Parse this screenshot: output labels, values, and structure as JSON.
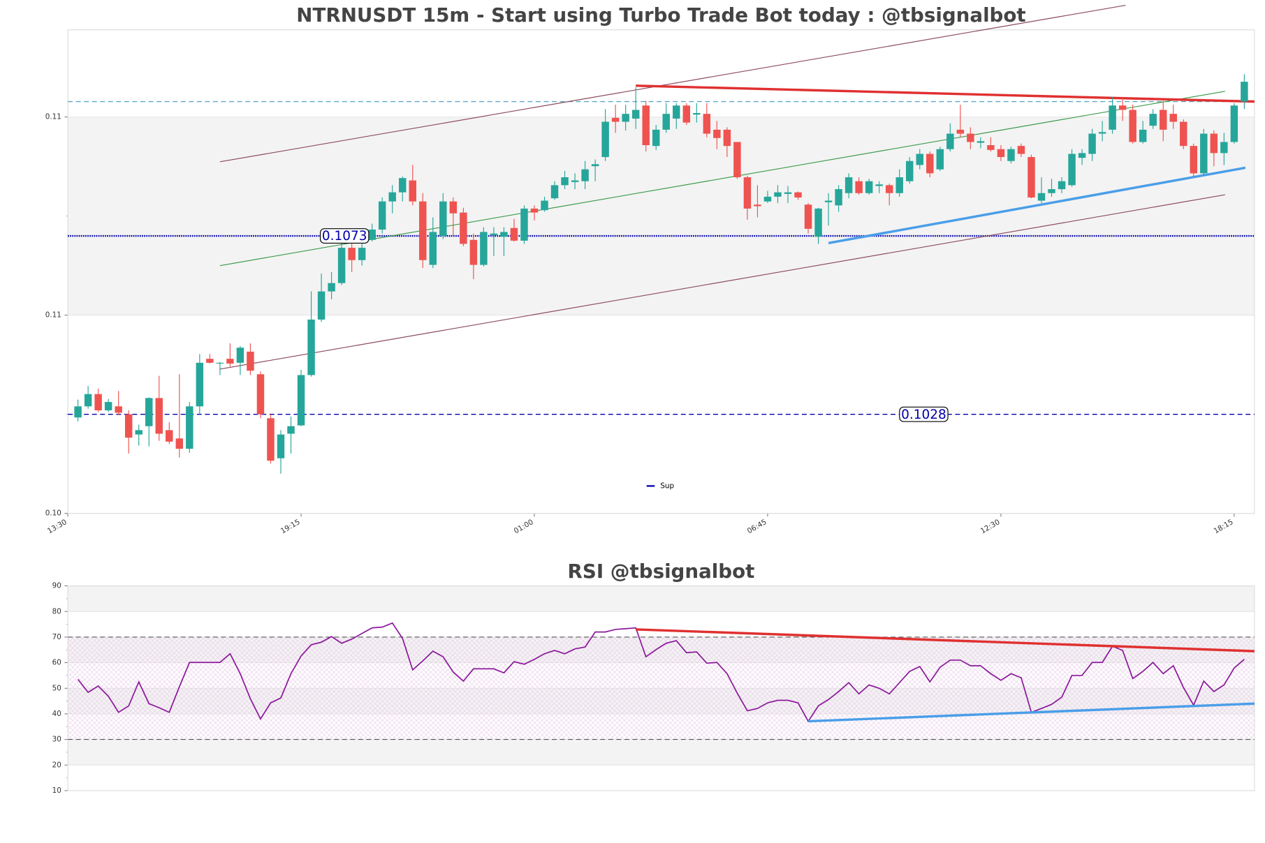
{
  "chart_data": [
    {
      "type": "candlestick",
      "title": "NTRNUSDT 15m - Start using Turbo Trade Bot today : @tbsignalbot",
      "x": [
        1,
        2,
        3,
        4,
        5,
        6,
        7,
        8,
        9,
        10,
        11,
        12,
        13,
        14,
        15,
        16,
        17,
        18,
        19,
        20,
        21,
        22,
        23,
        24,
        25,
        26,
        27,
        28,
        29,
        30,
        31,
        32,
        33,
        34,
        35,
        36,
        37,
        38,
        39,
        40,
        41,
        42,
        43,
        44,
        45,
        46,
        47,
        48,
        49,
        50,
        51,
        52,
        53,
        54,
        55,
        56,
        57,
        58,
        59,
        60,
        61,
        62,
        63,
        64,
        65,
        66,
        67,
        68,
        69,
        70,
        71,
        72,
        73,
        74,
        75,
        76,
        77,
        78,
        79,
        80,
        81,
        82,
        83,
        84,
        85,
        86,
        87,
        88,
        89,
        90,
        91,
        92,
        93,
        94,
        95,
        96,
        97,
        98,
        99,
        100,
        101,
        102,
        103,
        104,
        105,
        106,
        107,
        108,
        109,
        110,
        111,
        112,
        113,
        114,
        115,
        116
      ],
      "open": [
        0.10272,
        0.103,
        0.10331,
        0.1029,
        0.103,
        0.1028,
        0.10229,
        0.1025,
        0.10321,
        0.1024,
        0.10219,
        0.10193,
        0.103,
        0.1042,
        0.10408,
        0.1042,
        0.1041,
        0.10438,
        0.10381,
        0.1027,
        0.10169,
        0.10231,
        0.10252,
        0.10379,
        0.10519,
        0.1059,
        0.10611,
        0.107,
        0.10669,
        0.1072,
        0.10746,
        0.10817,
        0.1084,
        0.1087,
        0.10817,
        0.10657,
        0.1073,
        0.10817,
        0.10789,
        0.1072,
        0.10657,
        0.10732,
        0.10728,
        0.1075,
        0.10718,
        0.10799,
        0.10795,
        0.10825,
        0.10858,
        0.10866,
        0.10868,
        0.10906,
        0.10929,
        0.11028,
        0.11018,
        0.11026,
        0.11059,
        0.10957,
        0.10998,
        0.11026,
        0.11059,
        0.11036,
        0.11038,
        0.10998,
        0.10998,
        0.10967,
        0.10878,
        0.10809,
        0.10817,
        0.10829,
        0.10836,
        0.1084,
        0.10809,
        0.10728,
        0.10815,
        0.10807,
        0.10838,
        0.10868,
        0.10838,
        0.10856,
        0.10858,
        0.10838,
        0.10868,
        0.10909,
        0.10937,
        0.10898,
        0.10949,
        0.10998,
        0.10988,
        0.10965,
        0.10959,
        0.10949,
        0.10919,
        0.10957,
        0.10929,
        0.10819,
        0.10838,
        0.10848,
        0.10858,
        0.10927,
        0.10937,
        0.10988,
        0.10998,
        0.11059,
        0.11048,
        0.10967,
        0.11008,
        0.11048,
        0.11038,
        0.11018,
        0.10957,
        0.10888,
        0.10988,
        0.10939,
        0.10967,
        0.11069
      ],
      "close": [
        0.103,
        0.10331,
        0.1029,
        0.10311,
        0.10284,
        0.10221,
        0.1024,
        0.10321,
        0.10231,
        0.10211,
        0.10193,
        0.103,
        0.1041,
        0.1041,
        0.1041,
        0.10408,
        0.10448,
        0.1039,
        0.1028,
        0.10163,
        0.10229,
        0.1025,
        0.10379,
        0.10519,
        0.1059,
        0.10611,
        0.107,
        0.10669,
        0.107,
        0.10746,
        0.10817,
        0.1084,
        0.10876,
        0.10817,
        0.10669,
        0.1074,
        0.10817,
        0.10787,
        0.1071,
        0.10657,
        0.1074,
        0.10736,
        0.1074,
        0.10718,
        0.10799,
        0.10789,
        0.10819,
        0.10858,
        0.10878,
        0.1087,
        0.10898,
        0.10911,
        0.11018,
        0.11018,
        0.11038,
        0.11048,
        0.10959,
        0.10998,
        0.11038,
        0.11059,
        0.11016,
        0.1104,
        0.10988,
        0.10977,
        0.10957,
        0.10878,
        0.10799,
        0.10805,
        0.10829,
        0.1084,
        0.1084,
        0.10827,
        0.10748,
        0.10799,
        0.10819,
        0.10848,
        0.10878,
        0.10838,
        0.10868,
        0.1086,
        0.10838,
        0.10878,
        0.10919,
        0.10937,
        0.10888,
        0.10949,
        0.10988,
        0.10988,
        0.10967,
        0.10969,
        0.10947,
        0.10929,
        0.10949,
        0.10937,
        0.10827,
        0.10838,
        0.10848,
        0.10868,
        0.10937,
        0.10939,
        0.10988,
        0.10992,
        0.11059,
        0.11048,
        0.10967,
        0.10998,
        0.11038,
        0.10998,
        0.11018,
        0.10957,
        0.10888,
        0.10988,
        0.10939,
        0.10967,
        0.11059,
        0.11119
      ],
      "high": [
        0.10317,
        0.10351,
        0.10345,
        0.10319,
        0.10339,
        0.1029,
        0.10254,
        0.10323,
        0.10377,
        0.1026,
        0.10381,
        0.10311,
        0.10432,
        0.10432,
        0.10412,
        0.10459,
        0.10452,
        0.10459,
        0.10388,
        0.1028,
        0.1024,
        0.10274,
        0.10392,
        0.1059,
        0.10635,
        0.10639,
        0.10716,
        0.10722,
        0.10722,
        0.10761,
        0.10827,
        0.10858,
        0.1088,
        0.10909,
        0.10838,
        0.10777,
        0.10838,
        0.10827,
        0.10801,
        0.10736,
        0.10752,
        0.10752,
        0.10752,
        0.10773,
        0.10807,
        0.10807,
        0.10829,
        0.10868,
        0.10894,
        0.10888,
        0.10919,
        0.10923,
        0.1105,
        0.11061,
        0.11061,
        0.11105,
        0.11071,
        0.1101,
        0.11065,
        0.11065,
        0.11065,
        0.11065,
        0.11065,
        0.1102,
        0.11004,
        0.10967,
        0.10882,
        0.10858,
        0.10844,
        0.10858,
        0.10856,
        0.10842,
        0.10813,
        0.10801,
        0.10838,
        0.10858,
        0.10888,
        0.10878,
        0.10874,
        0.10868,
        0.10862,
        0.10898,
        0.10929,
        0.10949,
        0.10943,
        0.10955,
        0.11014,
        0.11061,
        0.11004,
        0.10979,
        0.10979,
        0.10959,
        0.10955,
        0.10963,
        0.10935,
        0.10878,
        0.10874,
        0.10878,
        0.10949,
        0.10949,
        0.11,
        0.1102,
        0.11081,
        0.11081,
        0.11061,
        0.1102,
        0.1105,
        0.11071,
        0.11061,
        0.11024,
        0.10963,
        0.11,
        0.10996,
        0.1099,
        0.11065,
        0.11138
      ],
      "low": [
        0.10262,
        0.10294,
        0.10286,
        0.10286,
        0.10278,
        0.10181,
        0.10201,
        0.10199,
        0.10213,
        0.10205,
        0.10171,
        0.10183,
        0.1028,
        0.10408,
        0.10379,
        0.104,
        0.10379,
        0.10379,
        0.1027,
        0.10156,
        0.1013,
        0.10181,
        0.1025,
        0.10375,
        0.10513,
        0.1057,
        0.10606,
        0.10639,
        0.10655,
        0.10716,
        0.10736,
        0.10787,
        0.10817,
        0.10807,
        0.10649,
        0.10649,
        0.10722,
        0.10732,
        0.10704,
        0.10621,
        0.10653,
        0.10679,
        0.10679,
        0.10716,
        0.1071,
        0.10769,
        0.10791,
        0.10821,
        0.10848,
        0.10848,
        0.10848,
        0.10868,
        0.10919,
        0.1099,
        0.10996,
        0.11,
        0.10943,
        0.10947,
        0.1099,
        0.11,
        0.1101,
        0.11016,
        0.10979,
        0.10949,
        0.10929,
        0.10874,
        0.10771,
        0.10777,
        0.10813,
        0.10813,
        0.10813,
        0.10821,
        0.10736,
        0.1071,
        0.10756,
        0.10791,
        0.10825,
        0.10834,
        0.10834,
        0.10838,
        0.10807,
        0.10829,
        0.10862,
        0.10898,
        0.10878,
        0.10894,
        0.10943,
        0.10979,
        0.10949,
        0.10951,
        0.10943,
        0.10919,
        0.10913,
        0.10929,
        0.10825,
        0.10813,
        0.10829,
        0.10838,
        0.10854,
        0.10909,
        0.10919,
        0.10969,
        0.10988,
        0.1102,
        0.10963,
        0.10963,
        0.11,
        0.10969,
        0.11,
        0.10949,
        0.10878,
        0.10882,
        0.10906,
        0.10909,
        0.10963,
        0.1105
      ],
      "up_color": "#26a69a",
      "down_color": "#ef5350",
      "xlim": [
        0,
        117
      ],
      "xticks": [
        {
          "value": 0,
          "label": "13:30"
        },
        {
          "value": 23,
          "label": "19:15"
        },
        {
          "value": 46,
          "label": "01:00"
        },
        {
          "value": 69,
          "label": "06:45"
        },
        {
          "value": 92,
          "label": "12:30"
        },
        {
          "value": 115,
          "label": "18:15"
        }
      ],
      "ylim": [
        0.1003,
        0.1125
      ],
      "yticks": [
        {
          "value": 0.1003,
          "label": "0.10"
        },
        {
          "value": 0.1053,
          "label": "0.11"
        },
        {
          "value": 0.1103,
          "label": "0.11"
        }
      ],
      "grid": "bands",
      "levels": [
        {
          "value": 0.1073,
          "color": "#0000aa",
          "style": "dotted"
        },
        {
          "value": 0.1028,
          "color": "#0000aa",
          "style": "dashed",
          "name": "Sup"
        }
      ],
      "hlines": [
        {
          "value": 0.11069,
          "color": "#5aa8c8",
          "style": "dashed"
        }
      ],
      "lines": [
        {
          "x": [
            15,
            104.3
          ],
          "y": [
            0.10917,
            0.11312
          ],
          "color": "#8b4a5a",
          "width": 1
        },
        {
          "x": [
            15,
            114.1
          ],
          "y": [
            0.10394,
            0.10834
          ],
          "color": "#8b4a5a",
          "width": 1
        },
        {
          "x": [
            15,
            114.1
          ],
          "y": [
            0.10655,
            0.11095
          ],
          "color": "#3a9a4a",
          "width": 1
        },
        {
          "x": [
            56,
            117
          ],
          "y": [
            0.11109,
            0.11069
          ],
          "color": "#e03030",
          "width": 3
        },
        {
          "x": [
            75,
            116.1
          ],
          "y": [
            0.10712,
            0.10902
          ],
          "color": "#4a9ee8",
          "width": 3
        }
      ],
      "legend": "lower center"
    },
    {
      "type": "line",
      "title": "RSI @tbsignalbot",
      "x": [
        1,
        2,
        3,
        4,
        5,
        6,
        7,
        8,
        9,
        10,
        11,
        12,
        13,
        14,
        15,
        16,
        17,
        18,
        19,
        20,
        21,
        22,
        23,
        24,
        25,
        26,
        27,
        28,
        29,
        30,
        31,
        32,
        33,
        34,
        35,
        36,
        37,
        38,
        39,
        40,
        41,
        42,
        43,
        44,
        45,
        46,
        47,
        48,
        49,
        50,
        51,
        52,
        53,
        54,
        55,
        56,
        57,
        58,
        59,
        60,
        61,
        62,
        63,
        64,
        65,
        66,
        67,
        68,
        69,
        70,
        71,
        72,
        73,
        74,
        75,
        76,
        77,
        78,
        79,
        80,
        81,
        82,
        83,
        84,
        85,
        86,
        87,
        88,
        89,
        90,
        91,
        92,
        93,
        94,
        95,
        96,
        97,
        98,
        99,
        100,
        101,
        102,
        103,
        104,
        105,
        106,
        107,
        108,
        109,
        110,
        111,
        112,
        113,
        114,
        115,
        116
      ],
      "series": [
        {
          "color": "#8b1a9b",
          "values": [
            53.5,
            48.4,
            50.9,
            46.9,
            40.6,
            43.1,
            52.5,
            44.0,
            42.4,
            40.6,
            50.6,
            60.1,
            60.1,
            60.1,
            60.1,
            63.5,
            55.7,
            45.9,
            38.0,
            44.3,
            46.2,
            55.7,
            62.6,
            67.0,
            68.0,
            70.2,
            67.6,
            69.2,
            71.4,
            73.6,
            73.9,
            75.5,
            69.5,
            57.2,
            60.7,
            64.5,
            62.3,
            56.3,
            52.8,
            57.6,
            57.6,
            57.6,
            56.0,
            60.4,
            59.4,
            61.3,
            63.5,
            64.8,
            63.5,
            65.4,
            66.1,
            72.0,
            72.0,
            73.0,
            73.3,
            73.6,
            62.3,
            65.1,
            67.6,
            68.6,
            63.9,
            64.2,
            59.8,
            60.1,
            55.7,
            48.1,
            41.2,
            42.1,
            44.3,
            45.3,
            45.3,
            44.3,
            37.1,
            43.1,
            45.6,
            48.7,
            52.2,
            47.8,
            51.3,
            50.0,
            47.8,
            52.2,
            56.6,
            58.5,
            52.5,
            58.2,
            61.0,
            61.0,
            58.8,
            58.8,
            55.7,
            53.1,
            55.7,
            54.1,
            40.6,
            42.1,
            43.7,
            46.5,
            55.0,
            55.0,
            60.1,
            60.1,
            66.4,
            64.8,
            53.8,
            56.6,
            60.1,
            55.7,
            58.8,
            50.3,
            43.4,
            52.8,
            48.7,
            51.3,
            57.9,
            61.3
          ]
        }
      ],
      "xlim": [
        0,
        117
      ],
      "ylim": [
        10,
        90
      ],
      "yticks": [
        10,
        20,
        30,
        40,
        50,
        60,
        70,
        80,
        90
      ],
      "grid": "bands",
      "hlines": [
        70,
        30
      ],
      "lines": [
        {
          "x": [
            56,
            117
          ],
          "y": [
            73.0,
            64.5
          ],
          "color": "#e03030",
          "width": 3
        },
        {
          "x": [
            73,
            117
          ],
          "y": [
            37.1,
            44.0
          ],
          "color": "#4a9ee8",
          "width": 3
        }
      ]
    }
  ]
}
